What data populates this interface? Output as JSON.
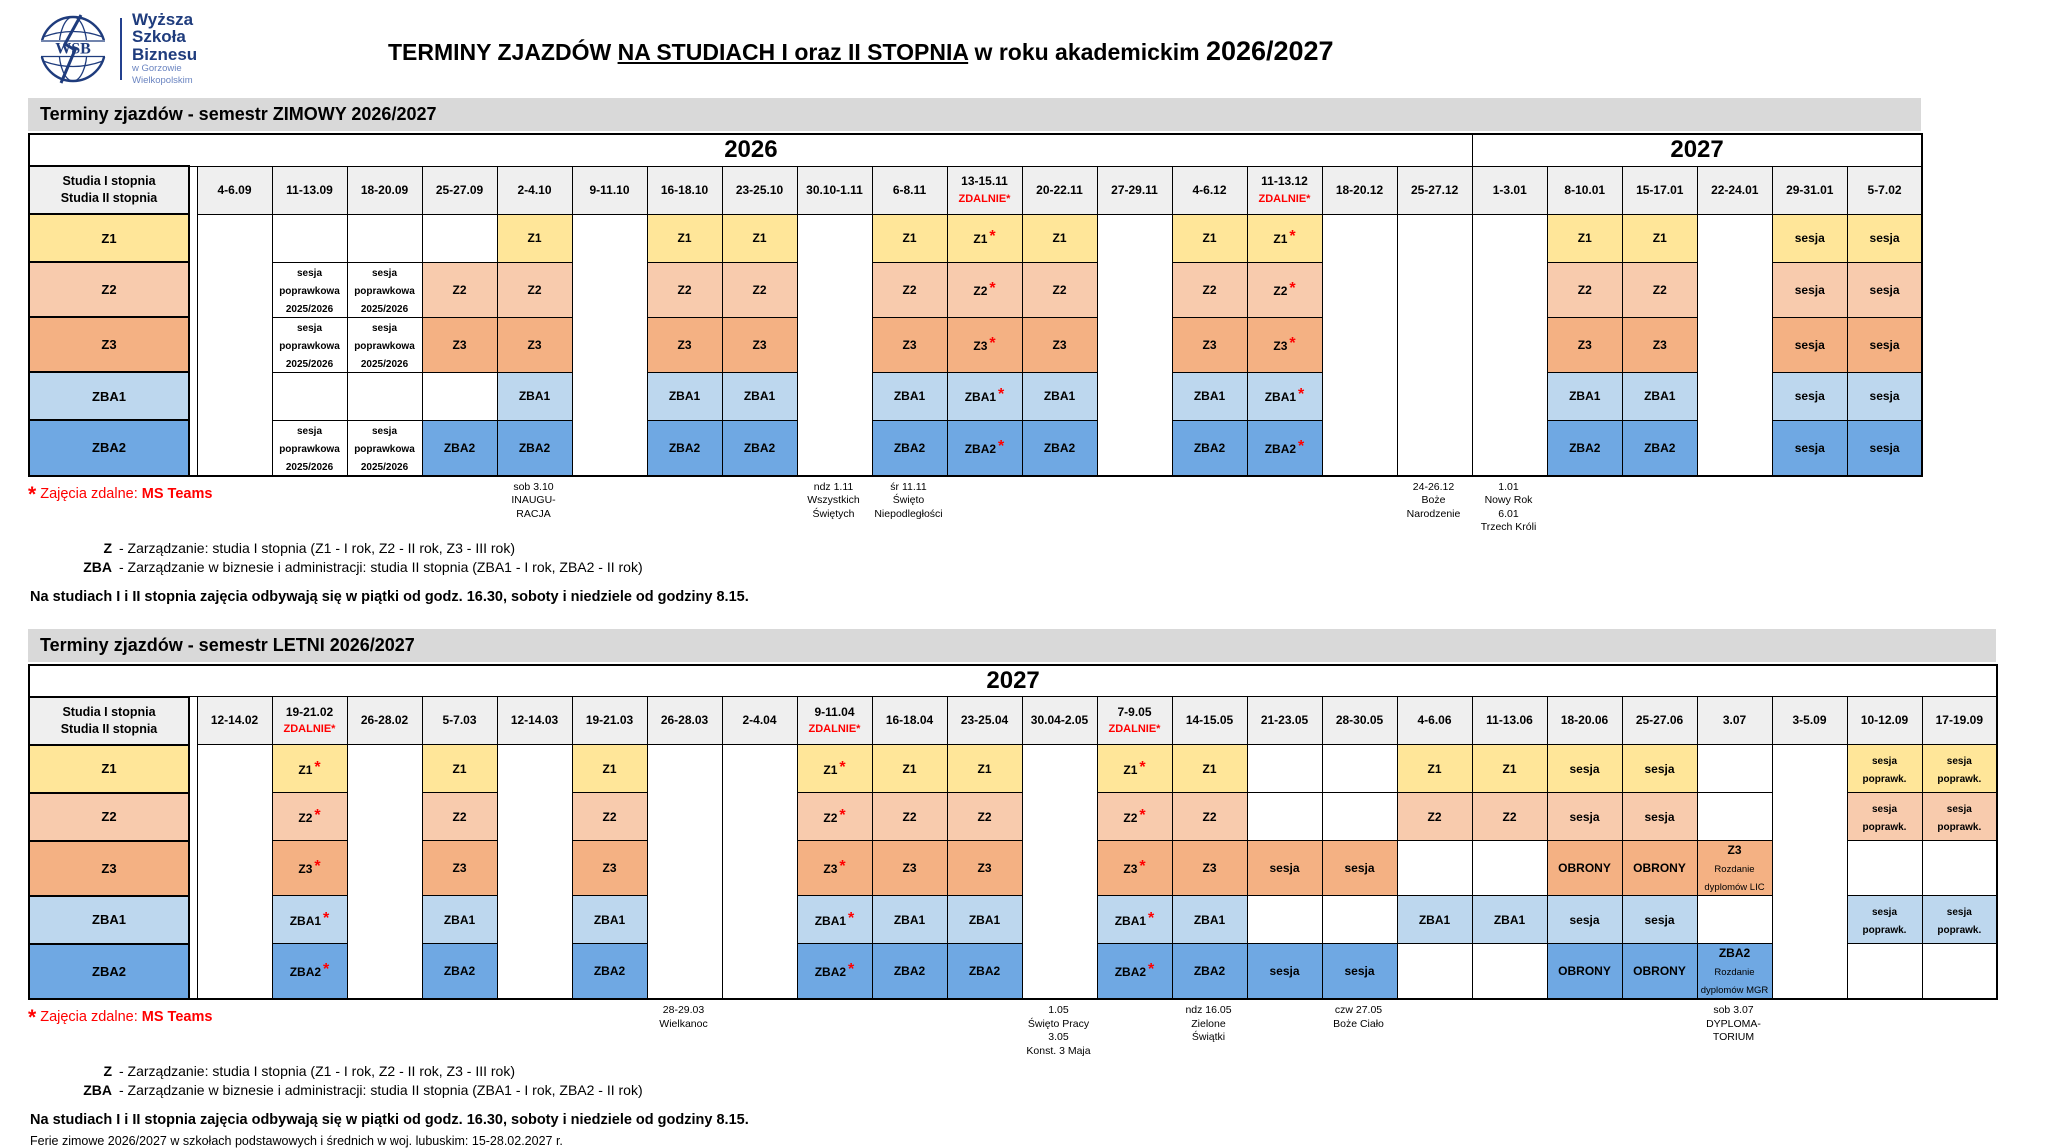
{
  "logo": {
    "acronym": "WSB",
    "name_lines": [
      "Wyższa",
      "Szkoła",
      "Biznesu"
    ],
    "sub_lines": [
      "w Gorzowie",
      "Wielkopolskim"
    ]
  },
  "title": {
    "prefix": "TERMINY ZJAZDÓW ",
    "underlined": "NA STUDIACH I oraz II STOPNIA",
    "middle": " w roku akademickim ",
    "year": "2026/2027"
  },
  "row_label_header": [
    "Studia I stopnia",
    "Studia II stopnia"
  ],
  "zdalnie_label": "ZDALNIE*",
  "groups": [
    {
      "id": "Z1",
      "color": "#FFE699"
    },
    {
      "id": "Z2",
      "color": "#F8CBAD"
    },
    {
      "id": "Z3",
      "color": "#F4B183"
    },
    {
      "id": "ZBA1",
      "color": "#BDD7EE"
    },
    {
      "id": "ZBA2",
      "color": "#6FA8E3"
    }
  ],
  "legend": {
    "star": "*",
    "text": " Zajęcia zdalne: ",
    "teams": "MS Teams"
  },
  "definitions": [
    {
      "abbr": "Z",
      "text": "-  Zarządzanie: studia I stopnia (Z1 - I rok, Z2 - II rok, Z3 - III rok)"
    },
    {
      "abbr": "ZBA",
      "text": "-  Zarządzanie w biznesie i administracji: studia II stopnia (ZBA1 - I rok, ZBA2 - II rok)"
    }
  ],
  "schedule_note": "Na studiach I i II stopnia zajęcia odbywają się w piątki od godz. 16.30, soboty i niedziele od godziny 8.15.",
  "ferie_note": "Ferie zimowe 2026/2027 w szkołach podstawowych i średnich w woj. lubuskim: 15-28.02.2027 r.",
  "winter": {
    "title": "Terminy zjazdów - semestr ZIMOWY 2026/2027",
    "years": [
      {
        "label": "2026",
        "span": 17
      },
      {
        "label": "2027",
        "span": 6
      }
    ],
    "columns": [
      {
        "date": "4-6.09"
      },
      {
        "date": "11-13.09",
        "cells": [
          "",
          "sesja\npoprawkowa\n2025/2026",
          "sesja\npoprawkowa\n2025/2026",
          "",
          "sesja\npoprawkowa\n2025/2026"
        ]
      },
      {
        "date": "18-20.09",
        "cells": [
          "",
          "sesja\npoprawkowa\n2025/2026",
          "sesja\npoprawkowa\n2025/2026",
          "",
          "sesja\npoprawkowa\n2025/2026"
        ]
      },
      {
        "date": "25-27.09",
        "cells": [
          "",
          "Z2",
          "Z3",
          "",
          "ZBA2"
        ]
      },
      {
        "date": "2-4.10",
        "cells": [
          "Z1",
          "Z2",
          "Z3",
          "ZBA1",
          "ZBA2"
        ]
      },
      {
        "date": "9-11.10"
      },
      {
        "date": "16-18.10",
        "cells": [
          "Z1",
          "Z2",
          "Z3",
          "ZBA1",
          "ZBA2"
        ]
      },
      {
        "date": "23-25.10",
        "cells": [
          "Z1",
          "Z2",
          "Z3",
          "ZBA1",
          "ZBA2"
        ]
      },
      {
        "date": "30.10-1.11"
      },
      {
        "date": "6-8.11",
        "cells": [
          "Z1",
          "Z2",
          "Z3",
          "ZBA1",
          "ZBA2"
        ]
      },
      {
        "date": "13-15.11",
        "zdalnie": true,
        "cells": [
          "Z1*",
          "Z2*",
          "Z3*",
          "ZBA1*",
          "ZBA2*"
        ]
      },
      {
        "date": "20-22.11",
        "cells": [
          "Z1",
          "Z2",
          "Z3",
          "ZBA1",
          "ZBA2"
        ]
      },
      {
        "date": "27-29.11"
      },
      {
        "date": "4-6.12",
        "cells": [
          "Z1",
          "Z2",
          "Z3",
          "ZBA1",
          "ZBA2"
        ]
      },
      {
        "date": "11-13.12",
        "zdalnie": true,
        "cells": [
          "Z1*",
          "Z2*",
          "Z3*",
          "ZBA1*",
          "ZBA2*"
        ]
      },
      {
        "date": "18-20.12"
      },
      {
        "date": "25-27.12"
      },
      {
        "date": "1-3.01"
      },
      {
        "date": "8-10.01",
        "cells": [
          "Z1",
          "Z2",
          "Z3",
          "ZBA1",
          "ZBA2"
        ]
      },
      {
        "date": "15-17.01",
        "cells": [
          "Z1",
          "Z2",
          "Z3",
          "ZBA1",
          "ZBA2"
        ]
      },
      {
        "date": "22-24.01"
      },
      {
        "date": "29-31.01",
        "cells": [
          "sesja",
          "sesja",
          "sesja",
          "sesja",
          "sesja"
        ]
      },
      {
        "date": "5-7.02",
        "cells": [
          "sesja",
          "sesja",
          "sesja",
          "sesja",
          "sesja"
        ]
      }
    ],
    "notes": [
      {
        "col": 5,
        "lines": [
          "sob 3.10",
          "INAUGU-",
          "RACJA"
        ]
      },
      {
        "col": 9,
        "lines": [
          "ndz 1.11",
          "Wszystkich",
          "Świętych"
        ]
      },
      {
        "col": 10,
        "lines": [
          "śr 11.11",
          "Święto",
          "Niepodległości"
        ]
      },
      {
        "col": 17,
        "lines": [
          "24-26.12",
          "Boże",
          "Narodzenie"
        ]
      },
      {
        "col": 18,
        "lines": [
          "1.01",
          "Nowy Rok",
          "6.01",
          "Trzech Króli"
        ]
      }
    ]
  },
  "summer": {
    "title": "Terminy zjazdów - semestr LETNI 2026/2027",
    "years": [
      {
        "label": "2027",
        "span": 24
      }
    ],
    "columns": [
      {
        "date": "12-14.02"
      },
      {
        "date": "19-21.02",
        "zdalnie": true,
        "cells": [
          "Z1*",
          "Z2*",
          "Z3*",
          "ZBA1*",
          "ZBA2*"
        ]
      },
      {
        "date": "26-28.02"
      },
      {
        "date": "5-7.03",
        "cells": [
          "Z1",
          "Z2",
          "Z3",
          "ZBA1",
          "ZBA2"
        ]
      },
      {
        "date": "12-14.03"
      },
      {
        "date": "19-21.03",
        "cells": [
          "Z1",
          "Z2",
          "Z3",
          "ZBA1",
          "ZBA2"
        ]
      },
      {
        "date": "26-28.03"
      },
      {
        "date": "2-4.04"
      },
      {
        "date": "9-11.04",
        "zdalnie": true,
        "cells": [
          "Z1*",
          "Z2*",
          "Z3*",
          "ZBA1*",
          "ZBA2*"
        ]
      },
      {
        "date": "16-18.04",
        "cells": [
          "Z1",
          "Z2",
          "Z3",
          "ZBA1",
          "ZBA2"
        ]
      },
      {
        "date": "23-25.04",
        "cells": [
          "Z1",
          "Z2",
          "Z3",
          "ZBA1",
          "ZBA2"
        ]
      },
      {
        "date": "30.04-2.05"
      },
      {
        "date": "7-9.05",
        "zdalnie": true,
        "cells": [
          "Z1*",
          "Z2*",
          "Z3*",
          "ZBA1*",
          "ZBA2*"
        ]
      },
      {
        "date": "14-15.05",
        "cells": [
          "Z1",
          "Z2",
          "Z3",
          "ZBA1",
          "ZBA2"
        ]
      },
      {
        "date": "21-23.05",
        "cells": [
          "",
          "",
          "sesja",
          "",
          "sesja"
        ]
      },
      {
        "date": "28-30.05",
        "cells": [
          "",
          "",
          "sesja",
          "",
          "sesja"
        ]
      },
      {
        "date": "4-6.06",
        "cells": [
          "Z1",
          "Z2",
          "",
          "ZBA1",
          ""
        ]
      },
      {
        "date": "11-13.06",
        "cells": [
          "Z1",
          "Z2",
          "",
          "ZBA1",
          ""
        ]
      },
      {
        "date": "18-20.06",
        "cells": [
          "sesja",
          "sesja",
          "OBRONY",
          "sesja",
          "OBRONY"
        ]
      },
      {
        "date": "25-27.06",
        "cells": [
          "sesja",
          "sesja",
          "OBRONY",
          "sesja",
          "OBRONY"
        ]
      },
      {
        "date": "3.07",
        "cells": [
          "",
          "",
          "Z3\nRozdanie\ndyplomów LIC",
          "",
          "ZBA2\nRozdanie\ndyplomów MGR"
        ]
      },
      {
        "date": "3-5.09"
      },
      {
        "date": "10-12.09",
        "cells": [
          "sesja\npoprawk.",
          "sesja\npoprawk.",
          "",
          "sesja\npoprawk.",
          ""
        ]
      },
      {
        "date": "17-19.09",
        "cells": [
          "sesja\npoprawk.",
          "sesja\npoprawk.",
          "",
          "sesja\npoprawk.",
          ""
        ]
      }
    ],
    "notes": [
      {
        "col": 7,
        "lines": [
          "28-29.03",
          "Wielkanoc"
        ]
      },
      {
        "col": 12,
        "lines": [
          "1.05",
          "Święto Pracy",
          "3.05",
          "Konst. 3 Maja"
        ]
      },
      {
        "col": 14,
        "lines": [
          "ndz 16.05",
          "Zielone",
          "Świątki"
        ]
      },
      {
        "col": 16,
        "lines": [
          "czw 27.05",
          "Boże Ciało"
        ]
      },
      {
        "col": 21,
        "lines": [
          "sob 3.07",
          "DYPLOMA-",
          "TORIUM"
        ]
      }
    ]
  }
}
